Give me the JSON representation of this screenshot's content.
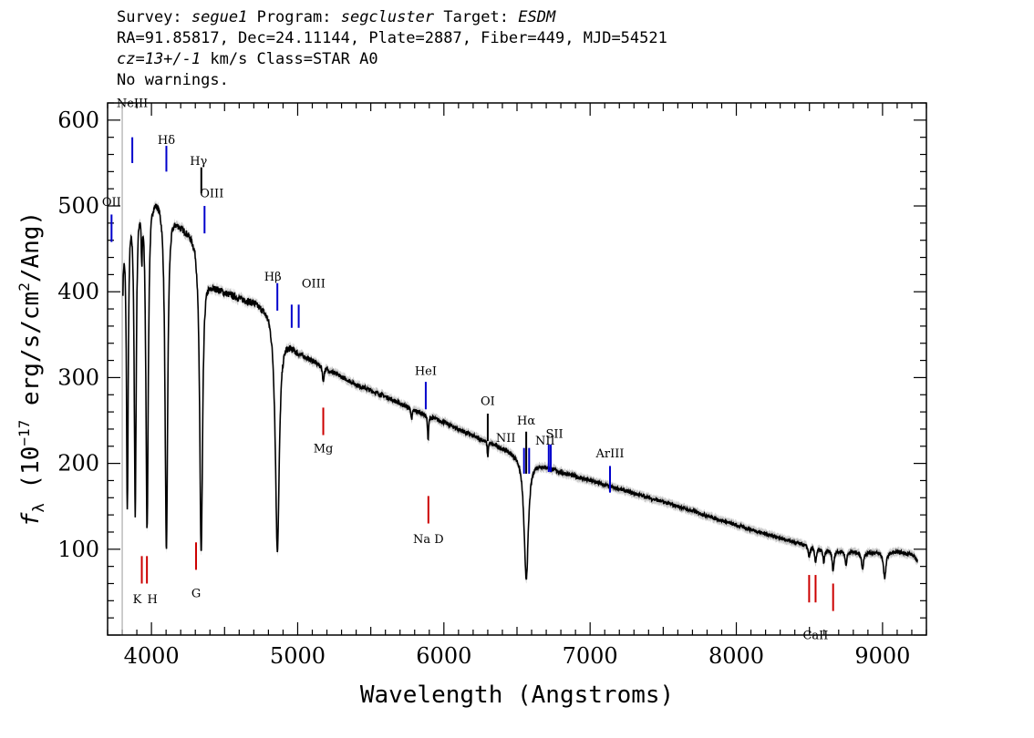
{
  "header": {
    "survey_label": "Survey:",
    "survey": "segue1",
    "program_label": "Program:",
    "program": "segcluster",
    "target_label": "Target:",
    "target": "ESDM",
    "line2": "RA=91.85817, Dec=24.11144, Plate=2887, Fiber=449, MJD=54521",
    "cz": "cz=13+/-1",
    "line3_rest": " km/s Class=STAR A0",
    "line4": "No warnings."
  },
  "chart_data": {
    "type": "line",
    "title": "",
    "xlabel": "Wavelength (Angstroms)",
    "ylabel_prefix": "f",
    "ylabel_sub": "λ",
    "ylabel_main": " (10",
    "ylabel_exp": "−17",
    "ylabel_units": " erg/s/cm",
    "ylabel_exp2": "2",
    "ylabel_tail": "/Ang)",
    "xlim": [
      3700,
      9300
    ],
    "ylim": [
      0,
      620
    ],
    "xticks": [
      4000,
      5000,
      6000,
      7000,
      8000,
      9000
    ],
    "xtick_labels": [
      "4000",
      "5000",
      "6000",
      "7000",
      "8000",
      "9000"
    ],
    "yticks": [
      100,
      200,
      300,
      400,
      500,
      600
    ],
    "ytick_labels": [
      "100",
      "200",
      "300",
      "400",
      "500",
      "600"
    ],
    "vertical_ref_x": 3800,
    "continuum": [
      [
        3800,
        460
      ],
      [
        3830,
        490
      ],
      [
        3850,
        500
      ],
      [
        3870,
        505
      ],
      [
        3900,
        510
      ],
      [
        3950,
        520
      ],
      [
        4000,
        515
      ],
      [
        4050,
        510
      ],
      [
        4100,
        500
      ],
      [
        4200,
        478
      ],
      [
        4300,
        462
      ],
      [
        4350,
        430
      ],
      [
        4400,
        410
      ],
      [
        4500,
        400
      ],
      [
        4600,
        393
      ],
      [
        4700,
        388
      ],
      [
        4800,
        378
      ],
      [
        4900,
        348
      ],
      [
        5000,
        330
      ],
      [
        5200,
        310
      ],
      [
        5400,
        292
      ],
      [
        5600,
        278
      ],
      [
        5800,
        262
      ],
      [
        6000,
        248
      ],
      [
        6200,
        232
      ],
      [
        6400,
        218
      ],
      [
        6600,
        203
      ],
      [
        6800,
        190
      ],
      [
        7000,
        180
      ],
      [
        7200,
        170
      ],
      [
        7400,
        160
      ],
      [
        7600,
        150
      ],
      [
        7800,
        139
      ],
      [
        8000,
        128
      ],
      [
        8200,
        118
      ],
      [
        8400,
        108
      ],
      [
        8600,
        99
      ],
      [
        8800,
        97
      ],
      [
        9000,
        96
      ],
      [
        9100,
        97
      ],
      [
        9200,
        94
      ],
      [
        9240,
        87
      ]
    ],
    "absorption": [
      {
        "x": 3720,
        "depth": 0,
        "width": 0
      },
      {
        "x": 3797,
        "depth": 230,
        "width": 5
      },
      {
        "x": 3835,
        "depth": 340,
        "width": 8
      },
      {
        "x": 3889,
        "depth": 360,
        "width": 9
      },
      {
        "x": 3934,
        "depth": 60,
        "width": 5
      },
      {
        "x": 3970,
        "depth": 390,
        "width": 11
      },
      {
        "x": 4102,
        "depth": 400,
        "width": 12
      },
      {
        "x": 4340,
        "depth": 340,
        "width": 13
      },
      {
        "x": 4861,
        "depth": 260,
        "width": 18
      },
      {
        "x": 5175,
        "depth": 18,
        "width": 6
      },
      {
        "x": 5780,
        "depth": 14,
        "width": 5
      },
      {
        "x": 5892,
        "depth": 28,
        "width": 5
      },
      {
        "x": 6300,
        "depth": 18,
        "width": 4
      },
      {
        "x": 6563,
        "depth": 140,
        "width": 20
      },
      {
        "x": 8498,
        "depth": 12,
        "width": 8
      },
      {
        "x": 8542,
        "depth": 16,
        "width": 8
      },
      {
        "x": 8598,
        "depth": 14,
        "width": 7
      },
      {
        "x": 8662,
        "depth": 24,
        "width": 8
      },
      {
        "x": 8750,
        "depth": 16,
        "width": 8
      },
      {
        "x": 8863,
        "depth": 20,
        "width": 9
      },
      {
        "x": 9015,
        "depth": 30,
        "width": 11
      }
    ],
    "lines": [
      {
        "label": "NeIII",
        "x": 3869,
        "color": "#0000cc",
        "y_top": 580,
        "y_bot": 550,
        "text_y": 615,
        "text_dx": 0
      },
      {
        "label": "Hδ",
        "x": 4102,
        "color": "#0000cc",
        "y_top": 570,
        "y_bot": 540,
        "text_y": 572,
        "text_dx": 0
      },
      {
        "label": "Hγ",
        "x": 4341,
        "color": "#000000",
        "y_top": 545,
        "y_bot": 515,
        "text_y": 548,
        "text_dx": -3
      },
      {
        "label": "OIII",
        "x": 4363,
        "color": "#0000cc",
        "y_top": 500,
        "y_bot": 468,
        "text_y": 510,
        "text_dx": 8
      },
      {
        "label": "OII",
        "x": 3727,
        "color": "#0000cc",
        "y_top": 490,
        "y_bot": 458,
        "text_y": 500,
        "text_dx": 0
      },
      {
        "label": "Hβ",
        "x": 4861,
        "color": "#0000cc",
        "y_top": 410,
        "y_bot": 378,
        "text_y": 413,
        "text_dx": -5
      },
      {
        "label": "OIII",
        "x": 4959,
        "color": "#0000cc",
        "y_top": 385,
        "y_bot": 358,
        "text_y": 405,
        "text_dx": 24
      },
      {
        "label": "",
        "x": 5007,
        "color": "#0000cc",
        "y_top": 385,
        "y_bot": 358,
        "text_y": 0,
        "text_dx": 0
      },
      {
        "label": "HeI",
        "x": 5876,
        "color": "#0000cc",
        "y_top": 295,
        "y_bot": 263,
        "text_y": 303,
        "text_dx": 0
      },
      {
        "label": "OI",
        "x": 6300,
        "color": "#000000",
        "y_top": 258,
        "y_bot": 226,
        "text_y": 268,
        "text_dx": 0
      },
      {
        "label": "NII",
        "x": 6548,
        "color": "#0000cc",
        "y_top": 218,
        "y_bot": 188,
        "text_y": 225,
        "text_dx": -20
      },
      {
        "label": "Hα",
        "x": 6563,
        "color": "#000000",
        "y_top": 237,
        "y_bot": 188,
        "text_y": 245,
        "text_dx": 0
      },
      {
        "label": "",
        "x": 6583,
        "color": "#0000cc",
        "y_top": 218,
        "y_bot": 188,
        "text_y": 0,
        "text_dx": 0
      },
      {
        "label": "NII",
        "x": 6717,
        "color": "#0000cc",
        "y_top": 222,
        "y_bot": 190,
        "text_y": 222,
        "text_dx": -4
      },
      {
        "label": "SII",
        "x": 6731,
        "color": "#0000cc",
        "y_top": 222,
        "y_bot": 190,
        "text_y": 230,
        "text_dx": 4
      },
      {
        "label": "ArIII",
        "x": 7136,
        "color": "#0000cc",
        "y_top": 197,
        "y_bot": 166,
        "text_y": 207,
        "text_dx": 0
      },
      {
        "label": "Mg",
        "x": 5175,
        "color": "#cc0000",
        "y_top": 265,
        "y_bot": 233,
        "text_y": 213,
        "text_dx": 0
      },
      {
        "label": "Na D",
        "x": 5894,
        "color": "#cc0000",
        "y_top": 162,
        "y_bot": 130,
        "text_y": 107,
        "text_dx": 0
      },
      {
        "label": "K",
        "x": 3934,
        "color": "#cc0000",
        "y_top": 92,
        "y_bot": 60,
        "text_y": 37,
        "text_dx": -5
      },
      {
        "label": "H",
        "x": 3969,
        "color": "#cc0000",
        "y_top": 92,
        "y_bot": 60,
        "text_y": 37,
        "text_dx": 6
      },
      {
        "label": "G",
        "x": 4305,
        "color": "#cc0000",
        "y_top": 108,
        "y_bot": 76,
        "text_y": 44,
        "text_dx": 0
      },
      {
        "label": "CaII",
        "x": 8542,
        "color": "#cc0000",
        "y_top": 70,
        "y_bot": 38,
        "text_y": -5,
        "text_dx": 0
      },
      {
        "label": "",
        "x": 8498,
        "color": "#cc0000",
        "y_top": 70,
        "y_bot": 38,
        "text_y": 0,
        "text_dx": 0
      },
      {
        "label": "",
        "x": 8662,
        "color": "#cc0000",
        "y_top": 60,
        "y_bot": 28,
        "text_y": 0,
        "text_dx": 0
      }
    ]
  }
}
